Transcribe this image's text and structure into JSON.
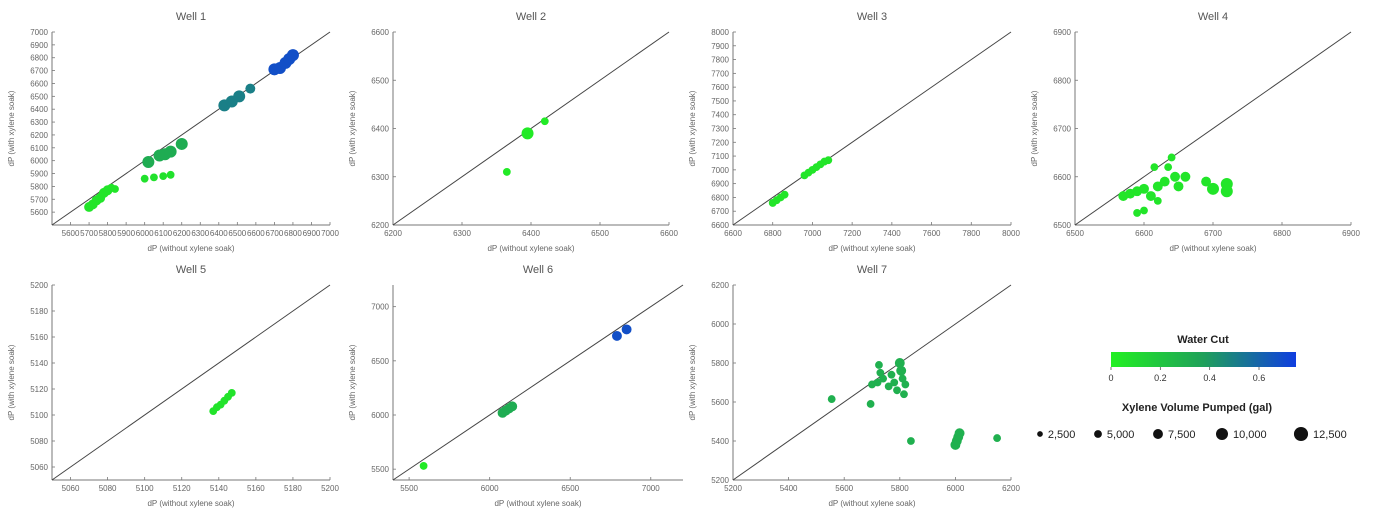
{
  "chart_data": [
    {
      "type": "scatter",
      "title": "Well 1",
      "xlabel": "dP (without xylene soak)",
      "ylabel": "dP (with xylene soak)",
      "xlim": [
        5500,
        7000
      ],
      "ylim": [
        5500,
        7000
      ],
      "xticks": [
        5600,
        5700,
        5800,
        5900,
        6000,
        6100,
        6200,
        6300,
        6400,
        6500,
        6600,
        6700,
        6800,
        6900,
        7000
      ],
      "yticks": [
        5600,
        5700,
        5800,
        5900,
        6000,
        6100,
        6200,
        6300,
        6400,
        6500,
        6600,
        6700,
        6800,
        6900,
        7000
      ],
      "reference_line": "y = x",
      "points": [
        {
          "x": 5700,
          "y": 5640,
          "wc": 0.05,
          "vol": 7500
        },
        {
          "x": 5720,
          "y": 5660,
          "wc": 0.05,
          "vol": 7500
        },
        {
          "x": 5740,
          "y": 5690,
          "wc": 0.05,
          "vol": 7500
        },
        {
          "x": 5760,
          "y": 5710,
          "wc": 0.05,
          "vol": 7500
        },
        {
          "x": 5780,
          "y": 5750,
          "wc": 0.05,
          "vol": 7500
        },
        {
          "x": 5800,
          "y": 5770,
          "wc": 0.05,
          "vol": 7500
        },
        {
          "x": 5820,
          "y": 5790,
          "wc": 0.05,
          "vol": 5000
        },
        {
          "x": 5840,
          "y": 5780,
          "wc": 0.05,
          "vol": 5000
        },
        {
          "x": 6000,
          "y": 5860,
          "wc": 0.07,
          "vol": 5000
        },
        {
          "x": 6050,
          "y": 5870,
          "wc": 0.07,
          "vol": 5000
        },
        {
          "x": 6100,
          "y": 5880,
          "wc": 0.07,
          "vol": 5000
        },
        {
          "x": 6140,
          "y": 5890,
          "wc": 0.07,
          "vol": 5000
        },
        {
          "x": 6020,
          "y": 5990,
          "wc": 0.32,
          "vol": 10000
        },
        {
          "x": 6080,
          "y": 6040,
          "wc": 0.32,
          "vol": 10000
        },
        {
          "x": 6110,
          "y": 6050,
          "wc": 0.32,
          "vol": 10000
        },
        {
          "x": 6140,
          "y": 6070,
          "wc": 0.32,
          "vol": 10000
        },
        {
          "x": 6200,
          "y": 6130,
          "wc": 0.32,
          "vol": 10000
        },
        {
          "x": 6430,
          "y": 6430,
          "wc": 0.5,
          "vol": 10000
        },
        {
          "x": 6470,
          "y": 6460,
          "wc": 0.5,
          "vol": 10000
        },
        {
          "x": 6510,
          "y": 6500,
          "wc": 0.5,
          "vol": 10000
        },
        {
          "x": 6570,
          "y": 6560,
          "wc": 0.5,
          "vol": 7500
        },
        {
          "x": 6700,
          "y": 6710,
          "wc": 0.68,
          "vol": 10000
        },
        {
          "x": 6730,
          "y": 6720,
          "wc": 0.68,
          "vol": 10000
        },
        {
          "x": 6760,
          "y": 6760,
          "wc": 0.68,
          "vol": 10000
        },
        {
          "x": 6780,
          "y": 6790,
          "wc": 0.68,
          "vol": 10000
        },
        {
          "x": 6800,
          "y": 6820,
          "wc": 0.68,
          "vol": 10000
        }
      ]
    },
    {
      "type": "scatter",
      "title": "Well 2",
      "xlabel": "dP (without xylene soak)",
      "ylabel": "dP (with xylene soak)",
      "xlim": [
        6200,
        6600
      ],
      "ylim": [
        6200,
        6600
      ],
      "xticks": [
        6200,
        6300,
        6400,
        6500,
        6600
      ],
      "yticks": [
        6200,
        6300,
        6400,
        6500,
        6600
      ],
      "reference_line": "y = x",
      "points": [
        {
          "x": 6365,
          "y": 6310,
          "wc": 0.03,
          "vol": 5000
        },
        {
          "x": 6395,
          "y": 6390,
          "wc": 0.03,
          "vol": 10000
        },
        {
          "x": 6420,
          "y": 6415,
          "wc": 0.03,
          "vol": 5000
        }
      ]
    },
    {
      "type": "scatter",
      "title": "Well 3",
      "xlabel": "dP (without xylene soak)",
      "ylabel": "dP (with xylene soak)",
      "xlim": [
        6600,
        8000
      ],
      "ylim": [
        6600,
        8000
      ],
      "xticks": [
        6600,
        6800,
        7000,
        7200,
        7400,
        7600,
        7800,
        8000
      ],
      "yticks": [
        6600,
        6700,
        6800,
        6900,
        7000,
        7100,
        7200,
        7300,
        7400,
        7500,
        7600,
        7700,
        7800,
        7900,
        8000
      ],
      "reference_line": "y = x",
      "points": [
        {
          "x": 6800,
          "y": 6760,
          "wc": 0.05,
          "vol": 5000
        },
        {
          "x": 6820,
          "y": 6780,
          "wc": 0.05,
          "vol": 5000
        },
        {
          "x": 6840,
          "y": 6800,
          "wc": 0.05,
          "vol": 5000
        },
        {
          "x": 6860,
          "y": 6820,
          "wc": 0.05,
          "vol": 5000
        },
        {
          "x": 6960,
          "y": 6960,
          "wc": 0.05,
          "vol": 5000
        },
        {
          "x": 6980,
          "y": 6980,
          "wc": 0.05,
          "vol": 5000
        },
        {
          "x": 7000,
          "y": 7000,
          "wc": 0.05,
          "vol": 5000
        },
        {
          "x": 7020,
          "y": 7020,
          "wc": 0.05,
          "vol": 5000
        },
        {
          "x": 7040,
          "y": 7040,
          "wc": 0.05,
          "vol": 5000
        },
        {
          "x": 7060,
          "y": 7060,
          "wc": 0.05,
          "vol": 5000
        },
        {
          "x": 7080,
          "y": 7070,
          "wc": 0.05,
          "vol": 5000
        }
      ]
    },
    {
      "type": "scatter",
      "title": "Well 4",
      "xlabel": "dP (without xylene soak)",
      "ylabel": "dP (with xylene soak)",
      "xlim": [
        6500,
        6900
      ],
      "ylim": [
        6500,
        6900
      ],
      "xticks": [
        6500,
        6600,
        6700,
        6800,
        6900
      ],
      "yticks": [
        6500,
        6600,
        6700,
        6800,
        6900
      ],
      "reference_line": "y = x",
      "points": [
        {
          "x": 6570,
          "y": 6560,
          "wc": 0.05,
          "vol": 7500
        },
        {
          "x": 6580,
          "y": 6565,
          "wc": 0.05,
          "vol": 7500
        },
        {
          "x": 6590,
          "y": 6570,
          "wc": 0.05,
          "vol": 7500
        },
        {
          "x": 6600,
          "y": 6575,
          "wc": 0.05,
          "vol": 7500
        },
        {
          "x": 6610,
          "y": 6560,
          "wc": 0.05,
          "vol": 7500
        },
        {
          "x": 6620,
          "y": 6580,
          "wc": 0.05,
          "vol": 7500
        },
        {
          "x": 6630,
          "y": 6590,
          "wc": 0.05,
          "vol": 7500
        },
        {
          "x": 6635,
          "y": 6620,
          "wc": 0.05,
          "vol": 5000
        },
        {
          "x": 6640,
          "y": 6640,
          "wc": 0.05,
          "vol": 5000
        },
        {
          "x": 6615,
          "y": 6620,
          "wc": 0.05,
          "vol": 5000
        },
        {
          "x": 6645,
          "y": 6600,
          "wc": 0.05,
          "vol": 7500
        },
        {
          "x": 6650,
          "y": 6580,
          "wc": 0.05,
          "vol": 7500
        },
        {
          "x": 6660,
          "y": 6600,
          "wc": 0.05,
          "vol": 7500
        },
        {
          "x": 6620,
          "y": 6550,
          "wc": 0.05,
          "vol": 5000
        },
        {
          "x": 6590,
          "y": 6525,
          "wc": 0.05,
          "vol": 5000
        },
        {
          "x": 6600,
          "y": 6530,
          "wc": 0.05,
          "vol": 5000
        },
        {
          "x": 6690,
          "y": 6590,
          "wc": 0.05,
          "vol": 7500
        },
        {
          "x": 6700,
          "y": 6575,
          "wc": 0.05,
          "vol": 10000
        },
        {
          "x": 6720,
          "y": 6585,
          "wc": 0.05,
          "vol": 10000
        },
        {
          "x": 6720,
          "y": 6570,
          "wc": 0.05,
          "vol": 10000
        }
      ]
    },
    {
      "type": "scatter",
      "title": "Well 5",
      "xlabel": "dP (without xylene soak)",
      "ylabel": "dP (with xylene soak)",
      "xlim": [
        5050,
        5200
      ],
      "ylim": [
        5050,
        5200
      ],
      "xticks": [
        5060,
        5080,
        5100,
        5120,
        5140,
        5160,
        5180,
        5200
      ],
      "yticks": [
        5060,
        5080,
        5100,
        5120,
        5140,
        5160,
        5180,
        5200
      ],
      "reference_line": "y = x",
      "points": [
        {
          "x": 5137,
          "y": 5103,
          "wc": 0.06,
          "vol": 5000
        },
        {
          "x": 5139,
          "y": 5106,
          "wc": 0.06,
          "vol": 5000
        },
        {
          "x": 5141,
          "y": 5108,
          "wc": 0.06,
          "vol": 5000
        },
        {
          "x": 5143,
          "y": 5111,
          "wc": 0.06,
          "vol": 5000
        },
        {
          "x": 5145,
          "y": 5114,
          "wc": 0.06,
          "vol": 5000
        },
        {
          "x": 5147,
          "y": 5117,
          "wc": 0.06,
          "vol": 5000
        }
      ]
    },
    {
      "type": "scatter",
      "title": "Well 6",
      "xlabel": "dP (without xylene soak)",
      "ylabel": "dP (with xylene soak)",
      "xlim": [
        5400,
        7200
      ],
      "ylim": [
        5400,
        7200
      ],
      "xticks": [
        5500,
        6000,
        6500,
        7000
      ],
      "yticks": [
        5500,
        6000,
        6500,
        7000
      ],
      "reference_line": "y = x",
      "points": [
        {
          "x": 5590,
          "y": 5530,
          "wc": 0.03,
          "vol": 5000
        },
        {
          "x": 6080,
          "y": 6020,
          "wc": 0.32,
          "vol": 7500
        },
        {
          "x": 6100,
          "y": 6040,
          "wc": 0.32,
          "vol": 7500
        },
        {
          "x": 6120,
          "y": 6060,
          "wc": 0.32,
          "vol": 7500
        },
        {
          "x": 6140,
          "y": 6080,
          "wc": 0.32,
          "vol": 7500
        },
        {
          "x": 6790,
          "y": 6730,
          "wc": 0.68,
          "vol": 7500
        },
        {
          "x": 6850,
          "y": 6790,
          "wc": 0.68,
          "vol": 7500
        }
      ]
    },
    {
      "type": "scatter",
      "title": "Well 7",
      "xlabel": "dP (without xylene soak)",
      "ylabel": "dP (with xylene soak)",
      "xlim": [
        5200,
        6200
      ],
      "ylim": [
        5200,
        6200
      ],
      "xticks": [
        5200,
        5400,
        5600,
        5800,
        6000,
        6200
      ],
      "yticks": [
        5200,
        5400,
        5600,
        5800,
        6000,
        6200
      ],
      "reference_line": "y = x",
      "points": [
        {
          "x": 5555,
          "y": 5615,
          "wc": 0.3,
          "vol": 5000
        },
        {
          "x": 5695,
          "y": 5590,
          "wc": 0.3,
          "vol": 5000
        },
        {
          "x": 5700,
          "y": 5690,
          "wc": 0.3,
          "vol": 5000
        },
        {
          "x": 5720,
          "y": 5700,
          "wc": 0.3,
          "vol": 5000
        },
        {
          "x": 5730,
          "y": 5750,
          "wc": 0.3,
          "vol": 5000
        },
        {
          "x": 5725,
          "y": 5790,
          "wc": 0.3,
          "vol": 5000
        },
        {
          "x": 5740,
          "y": 5720,
          "wc": 0.3,
          "vol": 5000
        },
        {
          "x": 5760,
          "y": 5680,
          "wc": 0.3,
          "vol": 5000
        },
        {
          "x": 5770,
          "y": 5740,
          "wc": 0.3,
          "vol": 5000
        },
        {
          "x": 5780,
          "y": 5700,
          "wc": 0.3,
          "vol": 5000
        },
        {
          "x": 5790,
          "y": 5660,
          "wc": 0.3,
          "vol": 5000
        },
        {
          "x": 5800,
          "y": 5800,
          "wc": 0.3,
          "vol": 7500
        },
        {
          "x": 5805,
          "y": 5760,
          "wc": 0.3,
          "vol": 7500
        },
        {
          "x": 5810,
          "y": 5720,
          "wc": 0.3,
          "vol": 5000
        },
        {
          "x": 5815,
          "y": 5640,
          "wc": 0.3,
          "vol": 5000
        },
        {
          "x": 5820,
          "y": 5690,
          "wc": 0.3,
          "vol": 5000
        },
        {
          "x": 5840,
          "y": 5400,
          "wc": 0.3,
          "vol": 5000
        },
        {
          "x": 6000,
          "y": 5380,
          "wc": 0.3,
          "vol": 7500
        },
        {
          "x": 6005,
          "y": 5400,
          "wc": 0.3,
          "vol": 7500
        },
        {
          "x": 6010,
          "y": 5420,
          "wc": 0.3,
          "vol": 7500
        },
        {
          "x": 6015,
          "y": 5440,
          "wc": 0.3,
          "vol": 7500
        },
        {
          "x": 6150,
          "y": 5415,
          "wc": 0.3,
          "vol": 5000
        }
      ]
    }
  ],
  "legend": {
    "color_title": "Water Cut",
    "color_ticks": [
      {
        "value": 0,
        "label": "0"
      },
      {
        "value": 0.2,
        "label": "0.2"
      },
      {
        "value": 0.4,
        "label": "0.4"
      },
      {
        "value": 0.6,
        "label": "0.6"
      }
    ],
    "color_range": [
      0,
      0.75
    ],
    "color_stops": [
      "#22f022",
      "#1fa05a",
      "#0f3de0"
    ],
    "size_title": "Xylene Volume Pumped (gal)",
    "sizes": [
      {
        "value": 2500,
        "label": "2,500"
      },
      {
        "value": 5000,
        "label": "5,000"
      },
      {
        "value": 7500,
        "label": "7,500"
      },
      {
        "value": 10000,
        "label": "10,000"
      },
      {
        "value": 12500,
        "label": "12,500"
      }
    ]
  },
  "colors": {
    "axis": "#777777",
    "diagonal": "#444444"
  }
}
